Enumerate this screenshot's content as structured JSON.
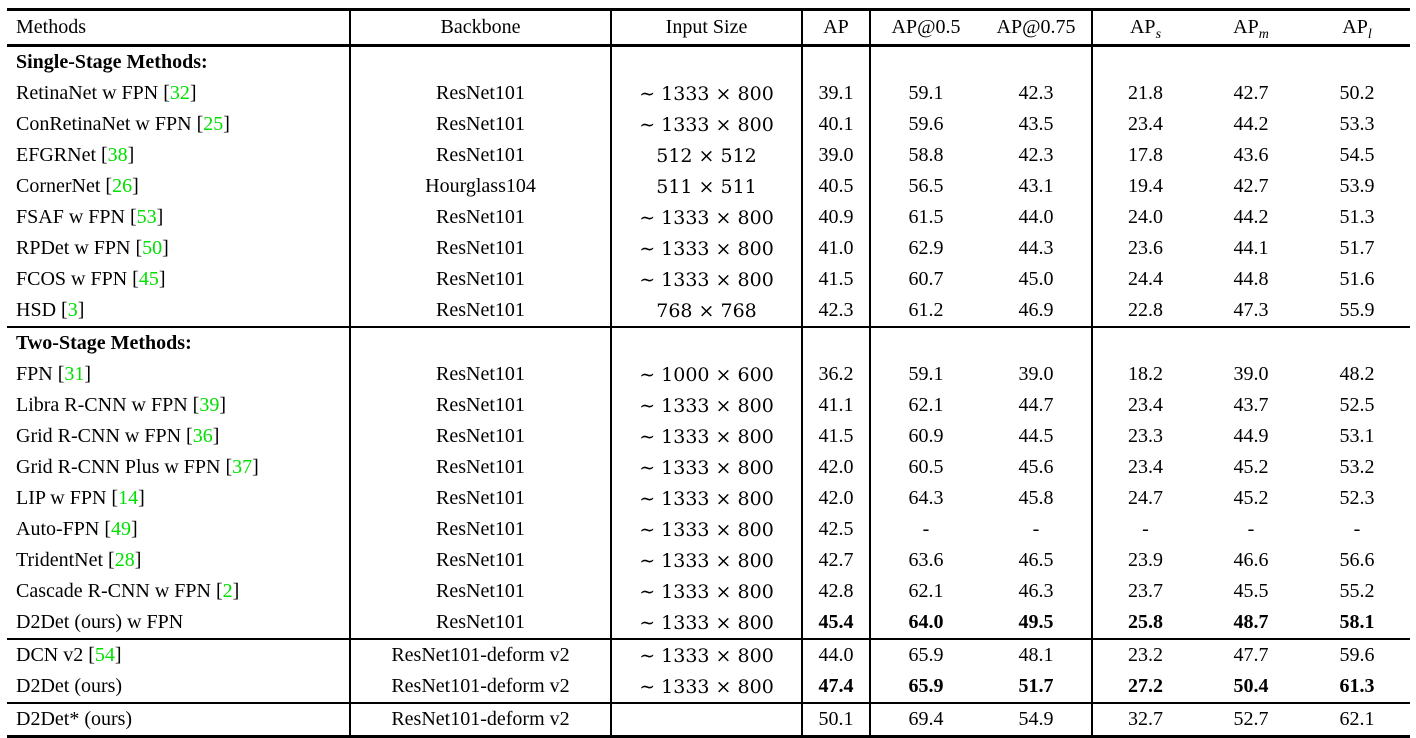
{
  "colors": {
    "citation": "#00e000",
    "text": "#000000",
    "background": "#ffffff"
  },
  "table": {
    "columns": [
      {
        "key": "methods",
        "label": "Methods"
      },
      {
        "key": "backbone",
        "label": "Backbone"
      },
      {
        "key": "input-size",
        "label": "Input Size"
      },
      {
        "key": "ap",
        "label": "AP"
      },
      {
        "key": "ap50",
        "label": "AP@0.5"
      },
      {
        "key": "ap75",
        "label": "AP@0.75"
      },
      {
        "key": "ap-s",
        "label": "AP",
        "sub": "s"
      },
      {
        "key": "ap-m",
        "label": "AP",
        "sub": "m"
      },
      {
        "key": "ap-l",
        "label": "AP",
        "sub": "l"
      }
    ],
    "rows": [
      {
        "type": "section",
        "label": "Single-Stage Methods:",
        "rule_above": false
      },
      {
        "type": "data",
        "method": "RetinaNet w FPN",
        "cite": "32",
        "backbone": "ResNet101",
        "input_size": "∼ 1333 × 800",
        "values": [
          "39.1",
          "59.1",
          "42.3",
          "21.8",
          "42.7",
          "50.2"
        ],
        "bold_values": false,
        "rule_above": false
      },
      {
        "type": "data",
        "method": "ConRetinaNet w FPN",
        "cite": "25",
        "backbone": "ResNet101",
        "input_size": "∼ 1333 × 800",
        "values": [
          "40.1",
          "59.6",
          "43.5",
          "23.4",
          "44.2",
          "53.3"
        ],
        "bold_values": false,
        "rule_above": false
      },
      {
        "type": "data",
        "method": "EFGRNet",
        "cite": "38",
        "backbone": "ResNet101",
        "input_size": "512 × 512",
        "values": [
          "39.0",
          "58.8",
          "42.3",
          "17.8",
          "43.6",
          "54.5"
        ],
        "bold_values": false,
        "rule_above": false
      },
      {
        "type": "data",
        "method": "CornerNet",
        "cite": "26",
        "backbone": "Hourglass104",
        "input_size": "511 × 511",
        "values": [
          "40.5",
          "56.5",
          "43.1",
          "19.4",
          "42.7",
          "53.9"
        ],
        "bold_values": false,
        "rule_above": false
      },
      {
        "type": "data",
        "method": "FSAF w FPN",
        "cite": "53",
        "backbone": "ResNet101",
        "input_size": "∼ 1333 × 800",
        "values": [
          "40.9",
          "61.5",
          "44.0",
          "24.0",
          "44.2",
          "51.3"
        ],
        "bold_values": false,
        "rule_above": false
      },
      {
        "type": "data",
        "method": "RPDet w FPN",
        "cite": "50",
        "backbone": "ResNet101",
        "input_size": "∼ 1333 × 800",
        "values": [
          "41.0",
          "62.9",
          "44.3",
          "23.6",
          "44.1",
          "51.7"
        ],
        "bold_values": false,
        "rule_above": false
      },
      {
        "type": "data",
        "method": "FCOS w FPN",
        "cite": "45",
        "backbone": "ResNet101",
        "input_size": "∼ 1333 × 800",
        "values": [
          "41.5",
          "60.7",
          "45.0",
          "24.4",
          "44.8",
          "51.6"
        ],
        "bold_values": false,
        "rule_above": false
      },
      {
        "type": "data",
        "method": "HSD",
        "cite": "3",
        "backbone": "ResNet101",
        "input_size": "768 × 768",
        "values": [
          "42.3",
          "61.2",
          "46.9",
          "22.8",
          "47.3",
          "55.9"
        ],
        "bold_values": false,
        "rule_above": false
      },
      {
        "type": "section",
        "label": "Two-Stage Methods:",
        "rule_above": true
      },
      {
        "type": "data",
        "method": "FPN",
        "cite": "31",
        "backbone": "ResNet101",
        "input_size": "∼ 1000 × 600",
        "values": [
          "36.2",
          "59.1",
          "39.0",
          "18.2",
          "39.0",
          "48.2"
        ],
        "bold_values": false,
        "rule_above": false
      },
      {
        "type": "data",
        "method": "Libra R-CNN w FPN",
        "cite": "39",
        "backbone": "ResNet101",
        "input_size": "∼ 1333 × 800",
        "values": [
          "41.1",
          "62.1",
          "44.7",
          "23.4",
          "43.7",
          "52.5"
        ],
        "bold_values": false,
        "rule_above": false
      },
      {
        "type": "data",
        "method": "Grid R-CNN w FPN",
        "cite": "36",
        "backbone": "ResNet101",
        "input_size": "∼ 1333 × 800",
        "values": [
          "41.5",
          "60.9",
          "44.5",
          "23.3",
          "44.9",
          "53.1"
        ],
        "bold_values": false,
        "rule_above": false
      },
      {
        "type": "data",
        "method": "Grid R-CNN Plus w FPN",
        "cite": "37",
        "backbone": "ResNet101",
        "input_size": "∼ 1333 × 800",
        "values": [
          "42.0",
          "60.5",
          "45.6",
          "23.4",
          "45.2",
          "53.2"
        ],
        "bold_values": false,
        "rule_above": false
      },
      {
        "type": "data",
        "method": "LIP w FPN",
        "cite": "14",
        "backbone": "ResNet101",
        "input_size": "∼ 1333 × 800",
        "values": [
          "42.0",
          "64.3",
          "45.8",
          "24.7",
          "45.2",
          "52.3"
        ],
        "bold_values": false,
        "rule_above": false
      },
      {
        "type": "data",
        "method": "Auto-FPN",
        "cite": "49",
        "backbone": "ResNet101",
        "input_size": "∼ 1333 × 800",
        "values": [
          "42.5",
          "-",
          "-",
          "-",
          "-",
          "-"
        ],
        "bold_values": false,
        "rule_above": false
      },
      {
        "type": "data",
        "method": "TridentNet",
        "cite": "28",
        "backbone": "ResNet101",
        "input_size": "∼ 1333 × 800",
        "values": [
          "42.7",
          "63.6",
          "46.5",
          "23.9",
          "46.6",
          "56.6"
        ],
        "bold_values": false,
        "rule_above": false
      },
      {
        "type": "data",
        "method": "Cascade R-CNN w FPN",
        "cite": "2",
        "backbone": "ResNet101",
        "input_size": "∼ 1333 × 800",
        "values": [
          "42.8",
          "62.1",
          "46.3",
          "23.7",
          "45.5",
          "55.2"
        ],
        "bold_values": false,
        "rule_above": false
      },
      {
        "type": "data",
        "method": "D2Det (ours) w FPN",
        "cite": null,
        "backbone": "ResNet101",
        "input_size": "∼ 1333 × 800",
        "values": [
          "45.4",
          "64.0",
          "49.5",
          "25.8",
          "48.7",
          "58.1"
        ],
        "bold_values": true,
        "rule_above": false
      },
      {
        "type": "data",
        "method": "DCN v2",
        "cite": "54",
        "backbone": "ResNet101-deform v2",
        "input_size": "∼ 1333 × 800",
        "values": [
          "44.0",
          "65.9",
          "48.1",
          "23.2",
          "47.7",
          "59.6"
        ],
        "bold_values": false,
        "rule_above": true
      },
      {
        "type": "data",
        "method": "D2Det (ours)",
        "cite": null,
        "backbone": "ResNet101-deform v2",
        "input_size": "∼ 1333 × 800",
        "values": [
          "47.4",
          "65.9",
          "51.7",
          "27.2",
          "50.4",
          "61.3"
        ],
        "bold_values": true,
        "rule_above": false
      },
      {
        "type": "data",
        "method": "D2Det* (ours)",
        "cite": null,
        "backbone": "ResNet101-deform v2",
        "input_size": "",
        "values": [
          "50.1",
          "69.4",
          "54.9",
          "32.7",
          "52.7",
          "62.1"
        ],
        "bold_values": false,
        "rule_above": true
      }
    ]
  }
}
